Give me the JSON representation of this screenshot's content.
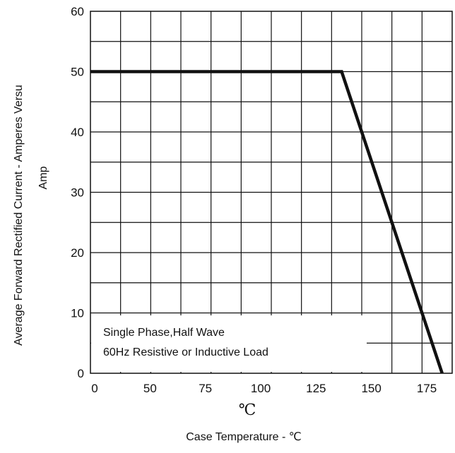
{
  "chart_data": {
    "type": "line",
    "title": "",
    "xlabel": "Case Temperature  - ℃",
    "x_unit_label": "℃",
    "ylabel_line1": "Average Forward Rectified Current - Amperes Versu",
    "ylabel_line2": "Amp",
    "xlim": [
      0,
      180
    ],
    "ylim": [
      0,
      60
    ],
    "x_tick_labels": [
      "0",
      "50",
      "75",
      "100",
      "125",
      "150",
      "175"
    ],
    "y_tick_labels": [
      "0",
      "10",
      "20",
      "30",
      "40",
      "50",
      "60"
    ],
    "y_ticks": [
      0,
      10,
      20,
      30,
      40,
      50,
      60
    ],
    "grid": true,
    "series": [
      {
        "x": [
          0,
          125,
          175
        ],
        "y": [
          50,
          50,
          0
        ]
      }
    ],
    "annotation_lines": [
      "Single Phase,Half Wave",
      "60Hz Resistive or Inductive Load"
    ]
  },
  "colors": {
    "line": "#111111",
    "grid": "#111111",
    "background": "#ffffff"
  }
}
